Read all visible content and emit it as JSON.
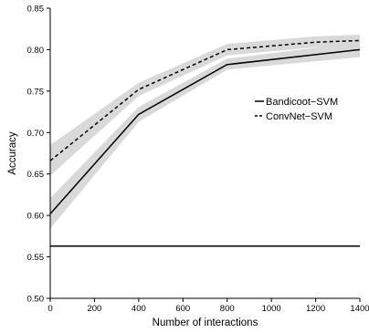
{
  "chart_data": {
    "type": "line",
    "title": "",
    "xlabel": "Number of interactions",
    "ylabel": "Accuracy",
    "xlim": [
      0,
      1400
    ],
    "ylim": [
      0.5,
      0.85
    ],
    "xticks": [
      "0",
      "200",
      "400",
      "600",
      "800",
      "1000",
      "1200",
      "1400"
    ],
    "yticks": [
      "0.50",
      "0.55",
      "0.60",
      "0.65",
      "0.70",
      "0.75",
      "0.80",
      "0.85"
    ],
    "grid": false,
    "legend_position": "right",
    "series": [
      {
        "name": "Bandicoot−SVM",
        "style": "solid",
        "color": "#000000",
        "x": [
          0,
          400,
          800,
          1400
        ],
        "y": [
          0.602,
          0.722,
          0.782,
          0.8
        ],
        "y_low": [
          0.584,
          0.713,
          0.776,
          0.791
        ],
        "y_high": [
          0.621,
          0.731,
          0.789,
          0.809
        ]
      },
      {
        "name": "ConvNet−SVM",
        "style": "dashed",
        "color": "#000000",
        "x": [
          0,
          400,
          800,
          1200,
          1400
        ],
        "y": [
          0.666,
          0.752,
          0.8,
          0.809,
          0.811
        ],
        "y_low": [
          0.648,
          0.744,
          0.793,
          0.803,
          0.805
        ],
        "y_high": [
          0.685,
          0.76,
          0.807,
          0.816,
          0.818
        ]
      },
      {
        "name": "",
        "style": "solid",
        "color": "#000000",
        "x": [
          0,
          1400
        ],
        "y": [
          0.563,
          0.563
        ]
      }
    ],
    "band_color": "#d9d9d9"
  }
}
